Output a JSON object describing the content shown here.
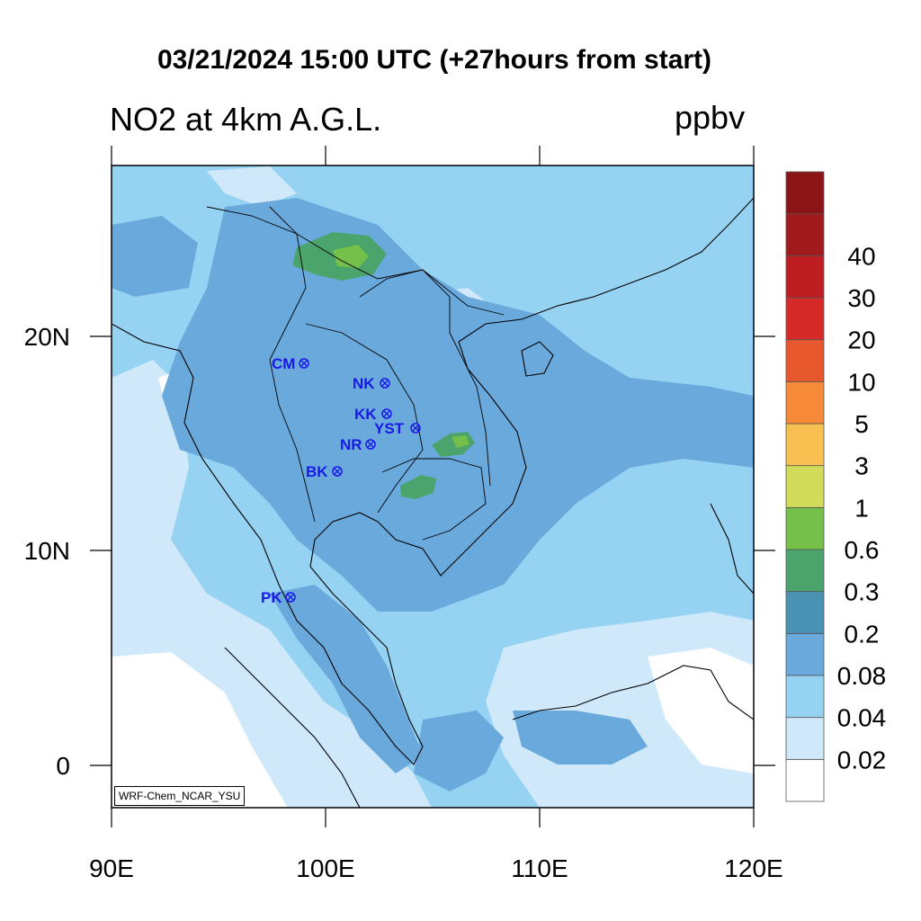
{
  "title": "03/21/2024 15:00 UTC (+27hours from start)",
  "subtitle": "NO2 at 4km A.G.L.",
  "units": "ppbv",
  "credit": "WRF-Chem_NCAR_YSU",
  "axes": {
    "x_ticks": [
      "90E",
      "100E",
      "110E",
      "120E"
    ],
    "y_ticks": [
      "20N",
      "10N",
      "0"
    ]
  },
  "colorbar": {
    "colors": [
      "#ffffff",
      "#cfe9fa",
      "#96d2f2",
      "#6aa9dc",
      "#4a92b4",
      "#4aa46c",
      "#74c04a",
      "#d2dc5a",
      "#f8c050",
      "#f68a38",
      "#e8582e",
      "#d62a28",
      "#be1e22",
      "#a01a1e",
      "#8a1416"
    ],
    "labels": [
      "0.02",
      "0.04",
      "0.08",
      "0.2",
      "0.3",
      "0.6",
      "1",
      "3",
      "5",
      "10",
      "20",
      "30",
      "40"
    ]
  },
  "sites": [
    {
      "code": "CM"
    },
    {
      "code": "NK"
    },
    {
      "code": "KK"
    },
    {
      "code": "YST"
    },
    {
      "code": "NR"
    },
    {
      "code": "BK"
    },
    {
      "code": "PK"
    }
  ],
  "background_color": "#96d2f2",
  "site_color": "#1a1ae6"
}
